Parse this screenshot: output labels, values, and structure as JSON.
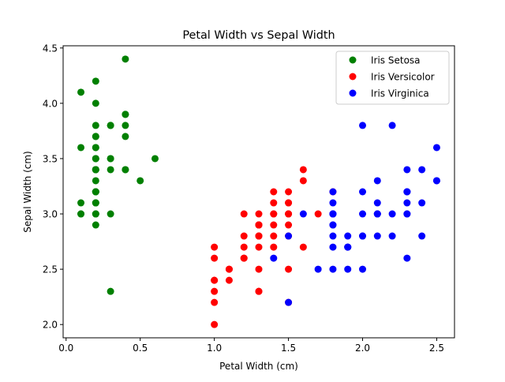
{
  "chart_data": {
    "type": "scatter",
    "title": "Petal Width vs Sepal Width",
    "xlabel": "Petal Width (cm)",
    "ylabel": "Sepal Width (cm)",
    "xlim": [
      -0.02,
      2.62
    ],
    "ylim": [
      1.88,
      4.52
    ],
    "xticks": [
      0.0,
      0.5,
      1.0,
      1.5,
      2.0,
      2.5
    ],
    "xtick_labels": [
      "0.0",
      "0.5",
      "1.0",
      "1.5",
      "2.0",
      "2.5"
    ],
    "yticks": [
      2.0,
      2.5,
      3.0,
      3.5,
      4.0,
      4.5
    ],
    "ytick_labels": [
      "2.0",
      "2.5",
      "3.0",
      "3.5",
      "4.0",
      "4.5"
    ],
    "grid": false,
    "legend_position": "top-right",
    "series": [
      {
        "name": "Iris Setosa",
        "color": "#008000",
        "points": [
          [
            0.2,
            3.5
          ],
          [
            0.2,
            3.0
          ],
          [
            0.2,
            3.2
          ],
          [
            0.2,
            3.1
          ],
          [
            0.2,
            3.6
          ],
          [
            0.4,
            3.9
          ],
          [
            0.3,
            3.4
          ],
          [
            0.2,
            3.4
          ],
          [
            0.2,
            2.9
          ],
          [
            0.1,
            3.1
          ],
          [
            0.2,
            3.7
          ],
          [
            0.2,
            3.4
          ],
          [
            0.1,
            3.0
          ],
          [
            0.1,
            3.0
          ],
          [
            0.2,
            4.0
          ],
          [
            0.4,
            4.4
          ],
          [
            0.4,
            3.9
          ],
          [
            0.3,
            3.5
          ],
          [
            0.3,
            3.8
          ],
          [
            0.3,
            3.8
          ],
          [
            0.2,
            3.4
          ],
          [
            0.4,
            3.7
          ],
          [
            0.2,
            3.6
          ],
          [
            0.5,
            3.3
          ],
          [
            0.2,
            3.4
          ],
          [
            0.2,
            3.0
          ],
          [
            0.4,
            3.4
          ],
          [
            0.2,
            3.5
          ],
          [
            0.2,
            3.4
          ],
          [
            0.2,
            3.2
          ],
          [
            0.2,
            3.1
          ],
          [
            0.4,
            3.4
          ],
          [
            0.1,
            4.1
          ],
          [
            0.2,
            4.2
          ],
          [
            0.2,
            3.1
          ],
          [
            0.2,
            3.2
          ],
          [
            0.2,
            3.5
          ],
          [
            0.1,
            3.6
          ],
          [
            0.2,
            3.0
          ],
          [
            0.2,
            3.4
          ],
          [
            0.3,
            3.5
          ],
          [
            0.3,
            2.3
          ],
          [
            0.2,
            3.2
          ],
          [
            0.6,
            3.5
          ],
          [
            0.4,
            3.8
          ],
          [
            0.3,
            3.0
          ],
          [
            0.2,
            3.8
          ],
          [
            0.2,
            3.2
          ],
          [
            0.2,
            3.7
          ],
          [
            0.2,
            3.3
          ]
        ]
      },
      {
        "name": "Iris Versicolor",
        "color": "#ff0000",
        "points": [
          [
            1.4,
            3.2
          ],
          [
            1.5,
            3.2
          ],
          [
            1.5,
            3.1
          ],
          [
            1.3,
            2.3
          ],
          [
            1.5,
            2.8
          ],
          [
            1.3,
            2.8
          ],
          [
            1.6,
            3.3
          ],
          [
            1.0,
            2.4
          ],
          [
            1.3,
            2.9
          ],
          [
            1.4,
            2.7
          ],
          [
            1.0,
            2.0
          ],
          [
            1.5,
            3.0
          ],
          [
            1.0,
            2.2
          ],
          [
            1.4,
            2.9
          ],
          [
            1.3,
            2.9
          ],
          [
            1.4,
            3.1
          ],
          [
            1.5,
            3.0
          ],
          [
            1.0,
            2.7
          ],
          [
            1.5,
            2.2
          ],
          [
            1.1,
            2.5
          ],
          [
            1.8,
            3.2
          ],
          [
            1.3,
            2.8
          ],
          [
            1.5,
            2.5
          ],
          [
            1.2,
            2.8
          ],
          [
            1.3,
            2.9
          ],
          [
            1.4,
            3.0
          ],
          [
            1.4,
            2.8
          ],
          [
            1.7,
            3.0
          ],
          [
            1.5,
            2.9
          ],
          [
            1.0,
            2.6
          ],
          [
            1.1,
            2.4
          ],
          [
            1.0,
            2.4
          ],
          [
            1.2,
            2.7
          ],
          [
            1.6,
            2.7
          ],
          [
            1.5,
            3.0
          ],
          [
            1.6,
            3.4
          ],
          [
            1.5,
            3.1
          ],
          [
            1.3,
            2.3
          ],
          [
            1.3,
            3.0
          ],
          [
            1.3,
            2.5
          ],
          [
            1.2,
            2.6
          ],
          [
            1.4,
            3.0
          ],
          [
            1.2,
            2.6
          ],
          [
            1.0,
            2.3
          ],
          [
            1.3,
            2.7
          ],
          [
            1.2,
            3.0
          ],
          [
            1.3,
            2.9
          ],
          [
            1.3,
            2.9
          ],
          [
            1.1,
            2.5
          ],
          [
            1.3,
            2.8
          ]
        ]
      },
      {
        "name": "Iris Virginica",
        "color": "#0000ff",
        "points": [
          [
            2.5,
            3.3
          ],
          [
            1.9,
            2.7
          ],
          [
            2.1,
            3.0
          ],
          [
            1.8,
            2.9
          ],
          [
            2.2,
            3.0
          ],
          [
            2.1,
            3.0
          ],
          [
            1.7,
            2.5
          ],
          [
            1.8,
            2.9
          ],
          [
            1.8,
            2.5
          ],
          [
            2.5,
            3.6
          ],
          [
            2.0,
            3.2
          ],
          [
            1.9,
            2.7
          ],
          [
            2.1,
            3.0
          ],
          [
            2.0,
            2.5
          ],
          [
            2.4,
            2.8
          ],
          [
            2.3,
            3.2
          ],
          [
            1.8,
            3.0
          ],
          [
            2.2,
            3.8
          ],
          [
            2.3,
            2.6
          ],
          [
            1.5,
            2.2
          ],
          [
            2.3,
            3.2
          ],
          [
            2.0,
            2.8
          ],
          [
            2.0,
            2.8
          ],
          [
            1.8,
            2.7
          ],
          [
            2.1,
            3.3
          ],
          [
            1.8,
            3.2
          ],
          [
            1.8,
            2.8
          ],
          [
            1.8,
            3.0
          ],
          [
            2.1,
            2.8
          ],
          [
            1.6,
            3.0
          ],
          [
            1.9,
            2.8
          ],
          [
            2.0,
            3.8
          ],
          [
            2.2,
            2.8
          ],
          [
            1.5,
            2.8
          ],
          [
            1.4,
            2.6
          ],
          [
            2.3,
            3.0
          ],
          [
            2.4,
            3.4
          ],
          [
            1.8,
            3.1
          ],
          [
            1.8,
            3.0
          ],
          [
            2.1,
            3.1
          ],
          [
            2.4,
            3.1
          ],
          [
            2.3,
            3.1
          ],
          [
            1.9,
            2.7
          ],
          [
            2.3,
            3.2
          ],
          [
            2.5,
            3.3
          ],
          [
            2.3,
            3.0
          ],
          [
            1.9,
            2.5
          ],
          [
            2.0,
            3.0
          ],
          [
            2.3,
            3.4
          ],
          [
            1.8,
            3.0
          ]
        ]
      }
    ]
  }
}
